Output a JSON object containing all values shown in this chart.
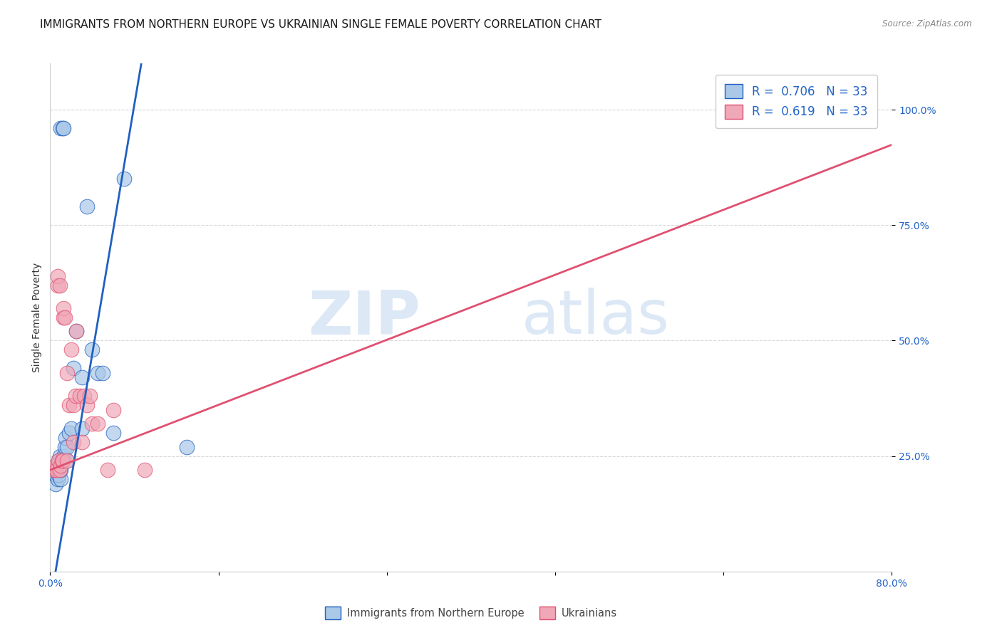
{
  "title": "IMMIGRANTS FROM NORTHERN EUROPE VS UKRAINIAN SINGLE FEMALE POVERTY CORRELATION CHART",
  "source": "Source: ZipAtlas.com",
  "ylabel": "Single Female Poverty",
  "ytick_labels": [
    "100.0%",
    "75.0%",
    "50.0%",
    "25.0%"
  ],
  "ytick_values": [
    1.0,
    0.75,
    0.5,
    0.25
  ],
  "xlim": [
    0,
    0.8
  ],
  "ylim": [
    0,
    1.1
  ],
  "legend1_R": "0.706",
  "legend1_N": "33",
  "legend2_R": "0.619",
  "legend2_N": "33",
  "blue_scatter_x": [
    0.005,
    0.005,
    0.005,
    0.007,
    0.007,
    0.008,
    0.008,
    0.009,
    0.009,
    0.01,
    0.01,
    0.01,
    0.012,
    0.013,
    0.013,
    0.014,
    0.015,
    0.016,
    0.016,
    0.018,
    0.02,
    0.022,
    0.025,
    0.03,
    0.03,
    0.035,
    0.04,
    0.045,
    0.05,
    0.06,
    0.07,
    0.13,
    0.75
  ],
  "blue_scatter_y": [
    0.19,
    0.21,
    0.22,
    0.2,
    0.23,
    0.21,
    0.24,
    0.22,
    0.25,
    0.2,
    0.22,
    0.96,
    0.96,
    0.96,
    0.25,
    0.27,
    0.29,
    0.24,
    0.27,
    0.3,
    0.31,
    0.44,
    0.52,
    0.42,
    0.31,
    0.79,
    0.48,
    0.43,
    0.43,
    0.3,
    0.85,
    0.27,
    1.0
  ],
  "pink_scatter_x": [
    0.004,
    0.005,
    0.006,
    0.007,
    0.007,
    0.008,
    0.009,
    0.009,
    0.01,
    0.011,
    0.012,
    0.013,
    0.013,
    0.014,
    0.016,
    0.016,
    0.018,
    0.02,
    0.022,
    0.022,
    0.024,
    0.025,
    0.028,
    0.03,
    0.032,
    0.035,
    0.038,
    0.04,
    0.045,
    0.055,
    0.06,
    0.09,
    0.75
  ],
  "pink_scatter_y": [
    0.22,
    0.23,
    0.22,
    0.62,
    0.64,
    0.24,
    0.22,
    0.62,
    0.23,
    0.24,
    0.24,
    0.55,
    0.57,
    0.55,
    0.24,
    0.43,
    0.36,
    0.48,
    0.28,
    0.36,
    0.38,
    0.52,
    0.38,
    0.28,
    0.38,
    0.36,
    0.38,
    0.32,
    0.32,
    0.22,
    0.35,
    0.22,
    1.0
  ],
  "blue_line_slope": 13.5,
  "blue_line_intercept": -0.07,
  "blue_line_xrange": [
    0.005,
    0.27
  ],
  "pink_line_slope": 0.88,
  "pink_line_intercept": 0.22,
  "pink_line_xrange": [
    0.0,
    0.8
  ],
  "scatter_color_blue": "#aac8e8",
  "scatter_color_pink": "#f0a8b8",
  "line_color_blue": "#2060c0",
  "line_color_pink": "#e05070",
  "legend_R_color": "#2264c8",
  "watermark_zip": "ZIP",
  "watermark_atlas": "atlas",
  "watermark_color": "#dce8f5",
  "grid_color": "#d8d8d8",
  "background_color": "#ffffff",
  "title_fontsize": 11,
  "axis_label_fontsize": 10,
  "tick_fontsize": 10,
  "legend_fontsize": 12
}
